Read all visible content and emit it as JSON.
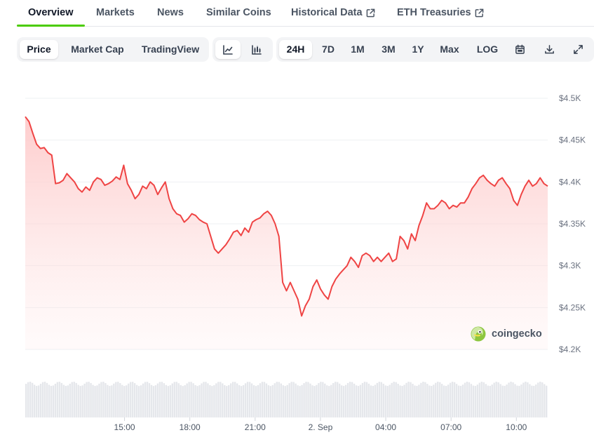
{
  "tabs": [
    {
      "label": "Overview",
      "active": true
    },
    {
      "label": "Markets"
    },
    {
      "label": "News"
    },
    {
      "label": "Similar Coins"
    },
    {
      "label": "Historical Data",
      "external": true
    },
    {
      "label": "ETH Treasuries",
      "external": true
    }
  ],
  "view_toggle": {
    "price": "Price",
    "market_cap": "Market Cap",
    "tradingview": "TradingView",
    "selected": "Price"
  },
  "chart_style": {
    "icons": [
      "line-chart-icon",
      "candlestick-chart-icon"
    ],
    "selected": "line-chart-icon"
  },
  "ranges": {
    "options": [
      "24H",
      "7D",
      "1M",
      "3M",
      "1Y",
      "Max",
      "LOG"
    ],
    "selected": "24H"
  },
  "toolbar_icons": [
    "calendar-icon",
    "download-icon",
    "fullscreen-icon"
  ],
  "watermark": "coingecko",
  "colors": {
    "accent": "#4bcc00",
    "line": "#ef4444",
    "area_top": "#fecaca",
    "volume": "#e5e7eb"
  },
  "chart_data": {
    "type": "area",
    "series": [
      {
        "values": [
          4478,
          4472,
          4458,
          4445,
          4440,
          4441,
          4435,
          4432,
          4398,
          4399,
          4402,
          4410,
          4405,
          4400,
          4392,
          4388,
          4394,
          4390,
          4400,
          4405,
          4403,
          4396,
          4398,
          4401,
          4406,
          4403,
          4420,
          4398,
          4390,
          4380,
          4385,
          4395,
          4392,
          4400,
          4396,
          4385,
          4393,
          4400,
          4380,
          4368,
          4362,
          4360,
          4352,
          4356,
          4362,
          4360,
          4355,
          4352,
          4350,
          4335,
          4320,
          4315,
          4320,
          4325,
          4332,
          4340,
          4342,
          4336,
          4345,
          4340,
          4352,
          4355,
          4357,
          4362,
          4365,
          4360,
          4350,
          4335,
          4280,
          4270,
          4280,
          4270,
          4260,
          4240,
          4252,
          4260,
          4275,
          4283,
          4272,
          4265,
          4260,
          4275,
          4284,
          4290,
          4295,
          4300,
          4310,
          4305,
          4298,
          4312,
          4315,
          4312,
          4305,
          4310,
          4305,
          4310,
          4315,
          4305,
          4308,
          4335,
          4330,
          4320,
          4338,
          4330,
          4348,
          4360,
          4375,
          4368,
          4368,
          4372,
          4378,
          4375,
          4368,
          4372,
          4370,
          4375,
          4375,
          4382,
          4392,
          4398,
          4405,
          4408,
          4402,
          4398,
          4395,
          4402,
          4405,
          4398,
          4392,
          4378,
          4372,
          4385,
          4395,
          4402,
          4395,
          4398,
          4405,
          4398,
          4395
        ]
      }
    ],
    "x_ticks": [
      {
        "label": "15:00",
        "frac": 0.19
      },
      {
        "label": "18:00",
        "frac": 0.315
      },
      {
        "label": "21:00",
        "frac": 0.44
      },
      {
        "label": "2. Sep",
        "frac": 0.565
      },
      {
        "label": "04:00",
        "frac": 0.69
      },
      {
        "label": "07:00",
        "frac": 0.815
      },
      {
        "label": "10:00",
        "frac": 0.94
      }
    ],
    "y_ticks": [
      {
        "value": 4500,
        "label": "$4.5K"
      },
      {
        "value": 4450,
        "label": "$4.45K"
      },
      {
        "value": 4400,
        "label": "$4.4K"
      },
      {
        "value": 4350,
        "label": "$4.35K"
      },
      {
        "value": 4300,
        "label": "$4.3K"
      },
      {
        "value": 4250,
        "label": "$4.25K"
      },
      {
        "value": 4200,
        "label": "$4.2K"
      }
    ],
    "ylim": [
      4200,
      4500
    ],
    "grid": true,
    "volume": true
  }
}
